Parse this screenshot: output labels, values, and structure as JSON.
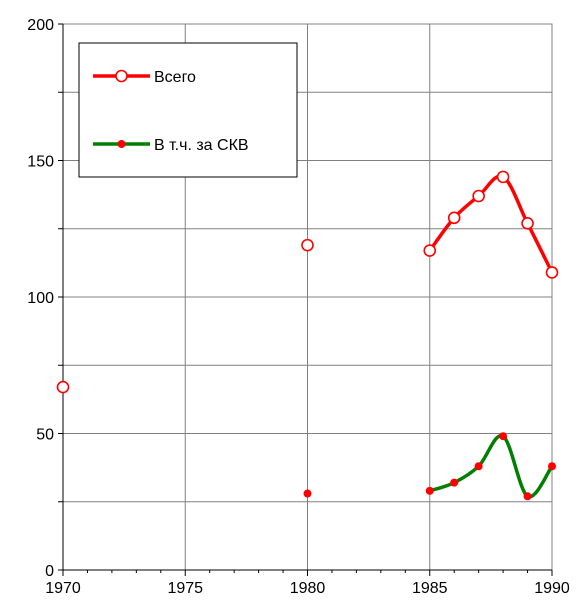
{
  "chart_data": {
    "type": "line",
    "title": "",
    "xlabel": "",
    "ylabel": "",
    "xlim": [
      1970,
      1990
    ],
    "ylim": [
      0,
      200
    ],
    "x_ticks": [
      1970,
      1975,
      1980,
      1985,
      1990
    ],
    "y_ticks": [
      0,
      50,
      100,
      150,
      200
    ],
    "grid": true,
    "legend_position": "top-left",
    "series": [
      {
        "name": "Всего",
        "color": "#ff0000",
        "marker": "open-circle",
        "x": [
          1970,
          1980,
          1985,
          1986,
          1987,
          1988,
          1989,
          1990
        ],
        "y": [
          67,
          119,
          117,
          129,
          137,
          144,
          127,
          109
        ],
        "connected_from": 2
      },
      {
        "name": "В т.ч. за СКВ",
        "color": "#008000",
        "marker_color": "#ff0000",
        "marker": "filled-circle",
        "x": [
          1980,
          1985,
          1986,
          1987,
          1988,
          1989,
          1990
        ],
        "y": [
          28,
          29,
          32,
          38,
          49,
          27,
          38
        ],
        "connected_from": 1
      }
    ]
  }
}
